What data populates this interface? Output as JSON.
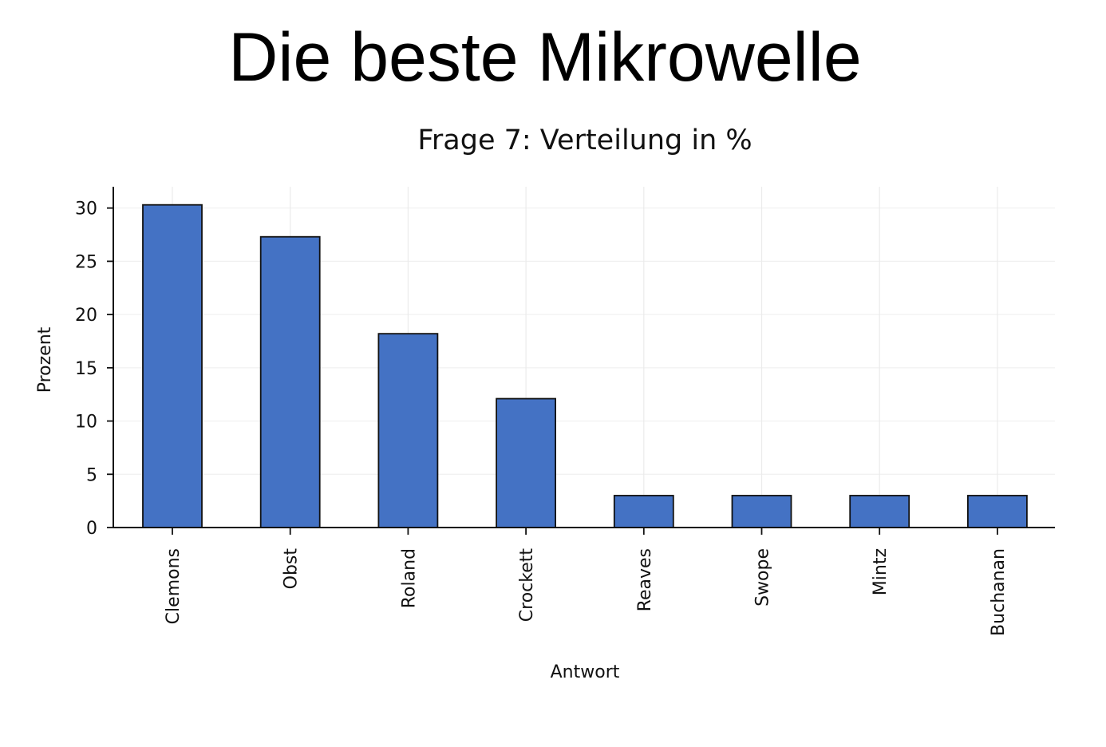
{
  "slide": {
    "title": "Die beste Mikrowelle"
  },
  "chart_data": {
    "type": "bar",
    "title": "Frage 7: Verteilung in %",
    "xlabel": "Antwort",
    "ylabel": "Prozent",
    "categories": [
      "Clemons",
      "Obst",
      "Roland",
      "Crockett",
      "Reaves",
      "Swope",
      "Mintz",
      "Buchanan"
    ],
    "values": [
      30.3,
      27.3,
      18.2,
      12.1,
      3.0,
      3.0,
      3.0,
      3.0
    ],
    "ylim": [
      0,
      32
    ],
    "yticks": [
      0,
      5,
      10,
      15,
      20,
      25,
      30
    ],
    "grid": true,
    "legend": "none",
    "bar_color": "#4472c4",
    "edge_color": "#111111"
  }
}
